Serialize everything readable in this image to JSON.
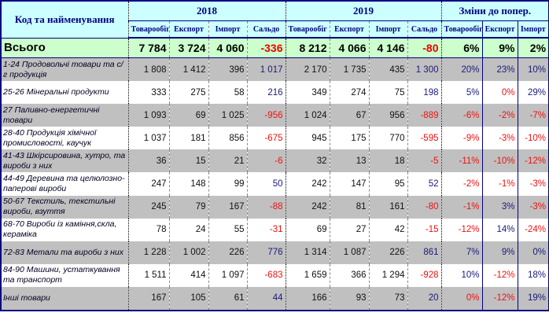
{
  "header": {
    "name_col": "Код та найменування",
    "groups": [
      "2018",
      "2019",
      "Зміни до попер."
    ],
    "sub_2018": [
      "Товарообіг",
      "Експорт",
      "Імпорт",
      "Сальдо"
    ],
    "sub_2019": [
      "Товарообіг",
      "Експорт",
      "Імпорт",
      "Сальдо"
    ],
    "sub_change": [
      "Товарообіг",
      "Експорт",
      "Імпорт"
    ]
  },
  "colors": {
    "negative": "#ee1111",
    "positive": "#1a1a7a",
    "header_bg": "#ccffff",
    "total_bg": "#ccffcc",
    "stripe": "#c0c0c0"
  },
  "total": {
    "name": "Всього",
    "values": [
      "7 784",
      "3 724",
      "4 060",
      "-336",
      "8 212",
      "4 066",
      "4 146",
      "-80",
      "6%",
      "9%",
      "2%"
    ]
  },
  "rows": [
    {
      "name": "1-24 Продовольчі товари та с/г продукція",
      "values": [
        "1 808",
        "1 412",
        "396",
        "1 017",
        "2 170",
        "1 735",
        "435",
        "1 300",
        "20%",
        "23%",
        "10%"
      ],
      "tone": [
        "",
        "",
        "",
        "b",
        "",
        "",
        "",
        "b",
        "b",
        "b",
        "b"
      ]
    },
    {
      "name": "25-26 Мінеральні продукти",
      "values": [
        "333",
        "275",
        "58",
        "216",
        "349",
        "274",
        "75",
        "198",
        "5%",
        "0%",
        "29%"
      ],
      "tone": [
        "",
        "",
        "",
        "b",
        "",
        "",
        "",
        "b",
        "b",
        "r",
        "b"
      ]
    },
    {
      "name": "27 Паливно-енергетичні товари",
      "values": [
        "1 093",
        "69",
        "1 025",
        "-956",
        "1 024",
        "67",
        "956",
        "-889",
        "-6%",
        "-2%",
        "-7%"
      ],
      "tone": [
        "",
        "",
        "",
        "r",
        "",
        "",
        "",
        "r",
        "r",
        "r",
        "r"
      ]
    },
    {
      "name": "28-40 Продукція хімічної промисловості, каучук",
      "values": [
        "1 037",
        "181",
        "856",
        "-675",
        "945",
        "175",
        "770",
        "-595",
        "-9%",
        "-3%",
        "-10%"
      ],
      "tone": [
        "",
        "",
        "",
        "r",
        "",
        "",
        "",
        "r",
        "r",
        "r",
        "r"
      ]
    },
    {
      "name": "41-43 Шкірсировина, хутро, та вироби з них",
      "values": [
        "36",
        "15",
        "21",
        "-6",
        "32",
        "13",
        "18",
        "-5",
        "-11%",
        "-10%",
        "-12%"
      ],
      "tone": [
        "",
        "",
        "",
        "r",
        "",
        "",
        "",
        "r",
        "r",
        "r",
        "r"
      ]
    },
    {
      "name": "44-49 Деревина та целюлозно-паперові вироби",
      "values": [
        "247",
        "148",
        "99",
        "50",
        "242",
        "147",
        "95",
        "52",
        "-2%",
        "-1%",
        "-3%"
      ],
      "tone": [
        "",
        "",
        "",
        "b",
        "",
        "",
        "",
        "b",
        "r",
        "r",
        "r"
      ]
    },
    {
      "name": "50-67 Текстиль, текстильні вироби, взуття",
      "values": [
        "245",
        "79",
        "167",
        "-88",
        "242",
        "81",
        "161",
        "-80",
        "-1%",
        "3%",
        "-3%"
      ],
      "tone": [
        "",
        "",
        "",
        "r",
        "",
        "",
        "",
        "r",
        "r",
        "b",
        "r"
      ]
    },
    {
      "name": "68-70 Вироби із каміння,скла, кераміка",
      "values": [
        "78",
        "24",
        "55",
        "-31",
        "69",
        "27",
        "42",
        "-15",
        "-12%",
        "14%",
        "-24%"
      ],
      "tone": [
        "",
        "",
        "",
        "r",
        "",
        "",
        "",
        "r",
        "r",
        "b",
        "r"
      ]
    },
    {
      "name": "72-83 Метали та вироби з них",
      "values": [
        "1 228",
        "1 002",
        "226",
        "776",
        "1 314",
        "1 087",
        "226",
        "861",
        "7%",
        "9%",
        "0%"
      ],
      "tone": [
        "",
        "",
        "",
        "b",
        "",
        "",
        "",
        "b",
        "b",
        "b",
        "b"
      ]
    },
    {
      "name": "84-90 Машини, устаткування та транспорт",
      "values": [
        "1 511",
        "414",
        "1 097",
        "-683",
        "1 659",
        "366",
        "1 294",
        "-928",
        "10%",
        "-12%",
        "18%"
      ],
      "tone": [
        "",
        "",
        "",
        "r",
        "",
        "",
        "",
        "r",
        "b",
        "r",
        "b"
      ]
    },
    {
      "name": "Інші товари",
      "values": [
        "167",
        "105",
        "61",
        "44",
        "166",
        "93",
        "73",
        "20",
        "0%",
        "-12%",
        "19%"
      ],
      "tone": [
        "",
        "",
        "",
        "b",
        "",
        "",
        "",
        "b",
        "r",
        "r",
        "b"
      ]
    }
  ]
}
